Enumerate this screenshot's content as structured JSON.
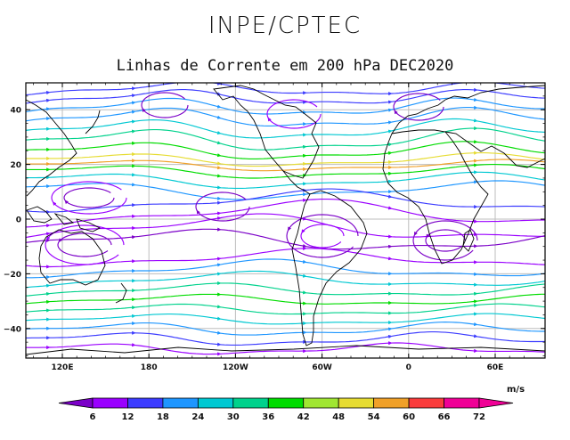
{
  "header": {
    "title": "INPE/CPTEC",
    "subtitle": "Linhas de Corrente em 200 hPa DEC2020"
  },
  "map": {
    "lat_ticks": [
      "40",
      "20",
      "0",
      "−20",
      "−40"
    ],
    "lon_ticks": [
      "120E",
      "180",
      "120W",
      "60W",
      "0",
      "60E"
    ],
    "frame_color": "#000000",
    "grid_color": "#bdbdbd",
    "coast_color": "#000000"
  },
  "colorbar": {
    "units": "m/s",
    "labels": [
      "6",
      "12",
      "18",
      "24",
      "30",
      "36",
      "42",
      "48",
      "54",
      "60",
      "66",
      "72"
    ],
    "colors": [
      "#7b00c8",
      "#9a00ff",
      "#3c3cff",
      "#1e96ff",
      "#00c8d2",
      "#00d28c",
      "#00dc00",
      "#a0e632",
      "#e6dc32",
      "#f0a028",
      "#fa3c3c",
      "#f00096"
    ]
  }
}
